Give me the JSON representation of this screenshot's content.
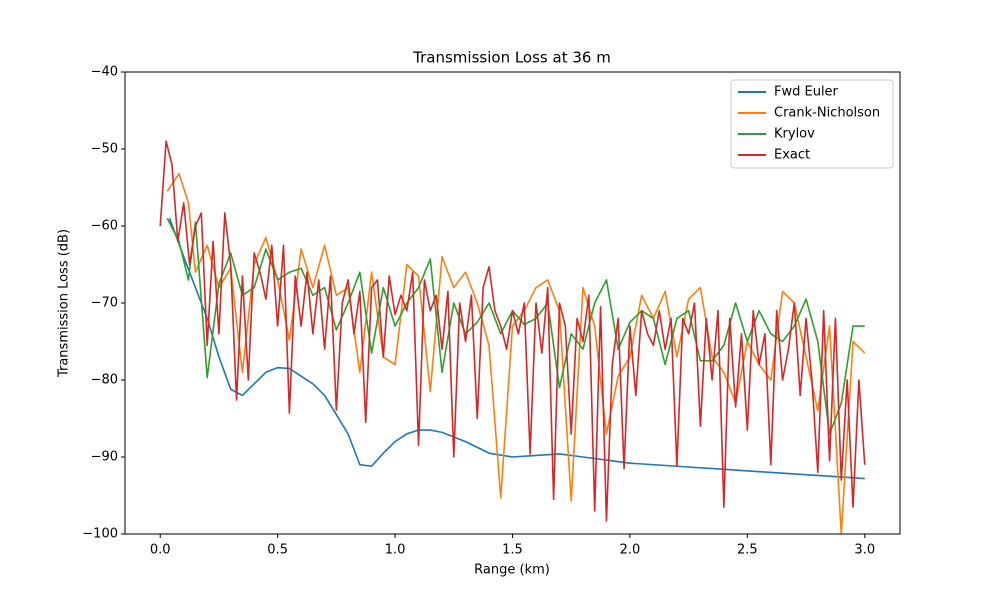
{
  "chart_data": {
    "type": "line",
    "title": "Transmission Loss at 36 m",
    "xlabel": "Range (km)",
    "ylabel": "Transmission Loss (dB)",
    "xlim": [
      -0.15,
      3.15
    ],
    "ylim": [
      -100,
      -40
    ],
    "xticks": [
      {
        "value": 0,
        "label": "0.0"
      },
      0.5,
      {
        "value": 1,
        "label": "1.0"
      },
      1.5,
      {
        "value": 2,
        "label": "2.0"
      },
      2.5,
      {
        "value": 3,
        "label": "3.0"
      }
    ],
    "yticks": [
      {
        "value": -100,
        "label": "−100"
      },
      {
        "value": -90,
        "label": "−90"
      },
      {
        "value": -80,
        "label": "−80"
      },
      {
        "value": -70,
        "label": "−70"
      },
      {
        "value": -60,
        "label": "−60"
      },
      {
        "value": -50,
        "label": "−50"
      },
      {
        "value": -40,
        "label": "−40"
      }
    ],
    "legend": "upper right",
    "series": [
      {
        "name": "Fwd Euler",
        "color": "#1f77b4",
        "x": [
          0.04,
          0.1,
          0.15,
          0.2,
          0.25,
          0.3,
          0.35,
          0.4,
          0.45,
          0.5,
          0.55,
          0.6,
          0.65,
          0.7,
          0.75,
          0.8,
          0.85,
          0.9,
          0.95,
          1.0,
          1.05,
          1.1,
          1.15,
          1.2,
          1.3,
          1.4,
          1.5,
          1.6,
          1.7,
          1.8,
          1.9,
          2.0,
          2.2,
          2.4,
          2.6,
          2.8,
          3.0
        ],
        "values": [
          -59,
          -64,
          -68,
          -72,
          -77,
          -81.2,
          -82,
          -80.5,
          -79,
          -78.4,
          -78.5,
          -79.5,
          -80.5,
          -82,
          -84.5,
          -87,
          -91,
          -91.2,
          -89.5,
          -88,
          -87,
          -86.5,
          -86.5,
          -86.8,
          -88,
          -89.5,
          -90,
          -89.8,
          -89.6,
          -90,
          -90.4,
          -90.8,
          -91.2,
          -91.6,
          -92,
          -92.4,
          -92.8
        ]
      },
      {
        "name": "Crank-Nicholson",
        "color": "#ff7f0e",
        "x": [
          0.03,
          0.08,
          0.12,
          0.15,
          0.2,
          0.25,
          0.3,
          0.35,
          0.4,
          0.45,
          0.5,
          0.55,
          0.6,
          0.65,
          0.7,
          0.75,
          0.8,
          0.85,
          0.9,
          0.95,
          1.0,
          1.05,
          1.1,
          1.15,
          1.2,
          1.25,
          1.3,
          1.35,
          1.4,
          1.45,
          1.5,
          1.55,
          1.6,
          1.65,
          1.7,
          1.75,
          1.8,
          1.85,
          1.9,
          1.95,
          2.0,
          2.05,
          2.1,
          2.15,
          2.2,
          2.25,
          2.3,
          2.35,
          2.4,
          2.45,
          2.5,
          2.55,
          2.6,
          2.65,
          2.7,
          2.75,
          2.8,
          2.85,
          2.9,
          2.95,
          3.0
        ],
        "values": [
          -55.5,
          -53.2,
          -57,
          -66,
          -62.5,
          -68,
          -65.5,
          -79,
          -65,
          -61.5,
          -67,
          -74.8,
          -63,
          -68,
          -62.5,
          -69,
          -68,
          -79,
          -66,
          -77,
          -78,
          -65,
          -66.5,
          -81.5,
          -64,
          -68,
          -66,
          -70,
          -75.5,
          -95.3,
          -73,
          -71,
          -68,
          -67,
          -71,
          -95.7,
          -68,
          -73,
          -87,
          -79.5,
          -77,
          -69,
          -72,
          -68.5,
          -77,
          -69.5,
          -68,
          -77,
          -79,
          -83,
          -75,
          -78,
          -80,
          -68.5,
          -70,
          -77,
          -84,
          -73,
          -100,
          -75,
          -76.5
        ]
      },
      {
        "name": "Krylov",
        "color": "#2ca02c",
        "x": [
          0.03,
          0.08,
          0.12,
          0.15,
          0.2,
          0.25,
          0.3,
          0.35,
          0.4,
          0.45,
          0.5,
          0.55,
          0.6,
          0.65,
          0.7,
          0.75,
          0.8,
          0.85,
          0.9,
          0.95,
          1.0,
          1.05,
          1.1,
          1.15,
          1.2,
          1.25,
          1.3,
          1.35,
          1.4,
          1.45,
          1.5,
          1.55,
          1.6,
          1.65,
          1.7,
          1.75,
          1.8,
          1.85,
          1.9,
          1.95,
          2.0,
          2.05,
          2.1,
          2.15,
          2.2,
          2.25,
          2.3,
          2.35,
          2.4,
          2.45,
          2.5,
          2.55,
          2.6,
          2.65,
          2.7,
          2.75,
          2.8,
          2.85,
          2.9,
          2.95,
          3.0
        ],
        "values": [
          -59,
          -62,
          -67,
          -59.5,
          -79.7,
          -67.5,
          -63.5,
          -69,
          -68,
          -63,
          -67,
          -66,
          -65.5,
          -69,
          -68,
          -73.5,
          -70,
          -66,
          -76.5,
          -68,
          -73,
          -70,
          -68,
          -64.3,
          -79,
          -70,
          -74,
          -72.5,
          -70,
          -74,
          -71,
          -72.8,
          -72,
          -70,
          -81,
          -74,
          -76,
          -70,
          -67,
          -76,
          -72.5,
          -71,
          -72,
          -78,
          -72,
          -71,
          -77.5,
          -77.5,
          -75.5,
          -70,
          -75,
          -71,
          -74,
          -75,
          -73,
          -69.5,
          -75,
          -87,
          -83,
          -73,
          -73
        ]
      },
      {
        "name": "Exact",
        "color": "#d62728",
        "x": [
          0,
          0.025,
          0.05,
          0.075,
          0.1,
          0.125,
          0.15,
          0.175,
          0.2,
          0.225,
          0.25,
          0.275,
          0.3,
          0.325,
          0.35,
          0.375,
          0.4,
          0.425,
          0.45,
          0.475,
          0.5,
          0.525,
          0.55,
          0.575,
          0.6,
          0.625,
          0.65,
          0.675,
          0.7,
          0.725,
          0.75,
          0.775,
          0.8,
          0.825,
          0.85,
          0.875,
          0.9,
          0.925,
          0.95,
          0.975,
          1,
          1.025,
          1.05,
          1.075,
          1.1,
          1.125,
          1.15,
          1.175,
          1.2,
          1.225,
          1.25,
          1.275,
          1.3,
          1.325,
          1.35,
          1.375,
          1.4,
          1.425,
          1.45,
          1.475,
          1.5,
          1.525,
          1.55,
          1.575,
          1.6,
          1.625,
          1.65,
          1.675,
          1.7,
          1.725,
          1.75,
          1.775,
          1.8,
          1.825,
          1.85,
          1.875,
          1.9,
          1.925,
          1.95,
          1.975,
          2,
          2.025,
          2.05,
          2.075,
          2.1,
          2.125,
          2.15,
          2.175,
          2.2,
          2.225,
          2.25,
          2.275,
          2.3,
          2.325,
          2.35,
          2.375,
          2.4,
          2.425,
          2.45,
          2.475,
          2.5,
          2.525,
          2.55,
          2.575,
          2.6,
          2.625,
          2.65,
          2.675,
          2.7,
          2.725,
          2.75,
          2.775,
          2.8,
          2.825,
          2.85,
          2.875,
          2.9,
          2.925,
          2.95,
          2.975,
          3
        ],
        "values": [
          -60,
          -49,
          -52,
          -62,
          -57,
          -65,
          -60,
          -58.3,
          -75.5,
          -62,
          -74,
          -58.3,
          -65,
          -82.6,
          -66.5,
          -80,
          -63.5,
          -66,
          -69.5,
          -62.5,
          -73,
          -62.5,
          -84.3,
          -66.5,
          -73,
          -66,
          -74,
          -67,
          -76,
          -66.5,
          -83.9,
          -70,
          -67,
          -74,
          -68.5,
          -85.5,
          -68,
          -67,
          -77,
          -66.5,
          -71.5,
          -69,
          -71,
          -66,
          -88.5,
          -67,
          -71,
          -69,
          -76,
          -68.5,
          -90,
          -70,
          -75,
          -69,
          -85,
          -68,
          -65.3,
          -71,
          -73,
          -76,
          -71,
          -74,
          -70,
          -89.6,
          -70,
          -76.5,
          -68,
          -95.5,
          -70,
          -73,
          -87,
          -72,
          -75,
          -69,
          -97,
          -70.5,
          -98.3,
          -78,
          -72,
          -91.5,
          -73,
          -82,
          -71,
          -74,
          -75.5,
          -71,
          -76,
          -72,
          -91.2,
          -72,
          -74,
          -70,
          -86,
          -72,
          -80,
          -71,
          -96.5,
          -72,
          -83.5,
          -74,
          -86.5,
          -71,
          -78,
          -74,
          -91,
          -71,
          -80,
          -76,
          -70,
          -82,
          -72,
          -80,
          -92,
          -71,
          -90.5,
          -72,
          -93,
          -80,
          -96.5,
          -80,
          -91
        ]
      }
    ]
  }
}
